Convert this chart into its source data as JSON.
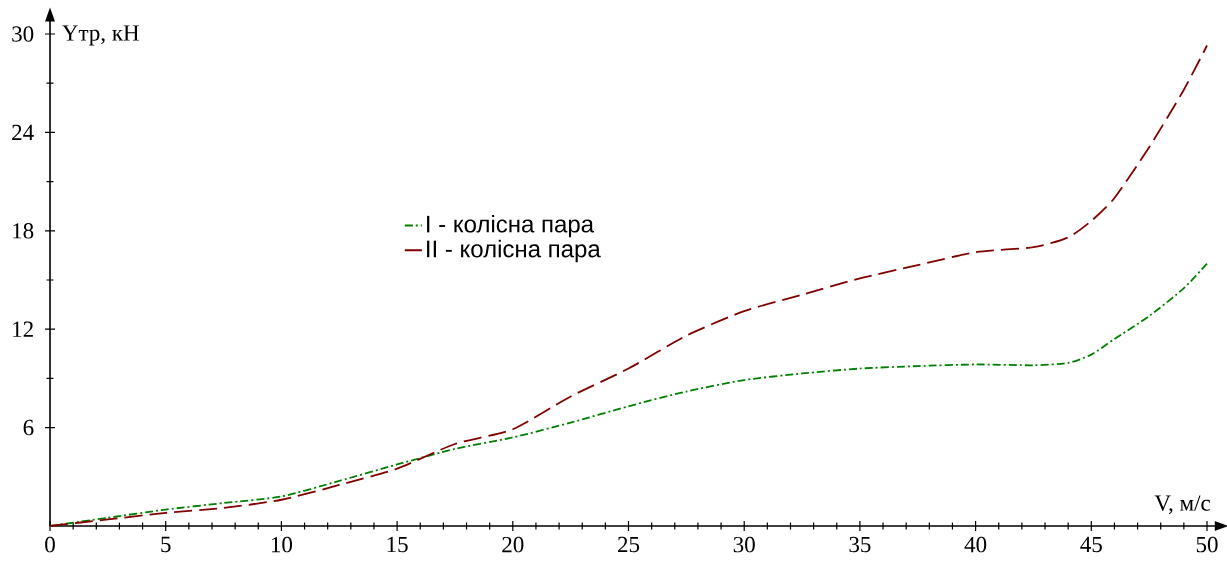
{
  "chart_data": {
    "type": "line",
    "xlabel": "V, м/с",
    "ylabel": "Yтр, кН",
    "x": [
      0,
      2.5,
      5,
      7.5,
      10,
      12.5,
      15,
      17.5,
      20,
      22.5,
      25,
      27.5,
      30,
      32.5,
      35,
      37.5,
      40,
      42.5,
      44,
      45,
      46,
      47.5,
      49,
      50
    ],
    "series": [
      {
        "name": "I - колісна пара",
        "color": "#008000",
        "line_style": "dashdot",
        "values": [
          0,
          0.5,
          1.0,
          1.4,
          1.8,
          2.75,
          3.75,
          4.7,
          5.4,
          6.3,
          7.3,
          8.2,
          8.9,
          9.3,
          9.6,
          9.75,
          9.85,
          9.8,
          9.95,
          10.45,
          11.4,
          12.8,
          14.5,
          16.0
        ]
      },
      {
        "name": "II - колісна пара",
        "color": "#800000",
        "line_style": "dashed",
        "values": [
          0,
          0.4,
          0.8,
          1.1,
          1.6,
          2.5,
          3.5,
          5.0,
          5.9,
          7.9,
          9.6,
          11.6,
          13.1,
          14.1,
          15.1,
          15.9,
          16.7,
          17.0,
          17.6,
          18.6,
          20.0,
          23.1,
          26.6,
          29.3
        ]
      }
    ],
    "xlim": [
      0,
      50.5
    ],
    "ylim": [
      0,
      31
    ],
    "xticks": [
      0,
      5,
      10,
      15,
      20,
      25,
      30,
      35,
      40,
      45,
      50
    ],
    "yticks": [
      6,
      12,
      18,
      24,
      30
    ],
    "grid": false,
    "legend": "center left",
    "marker": "none"
  }
}
